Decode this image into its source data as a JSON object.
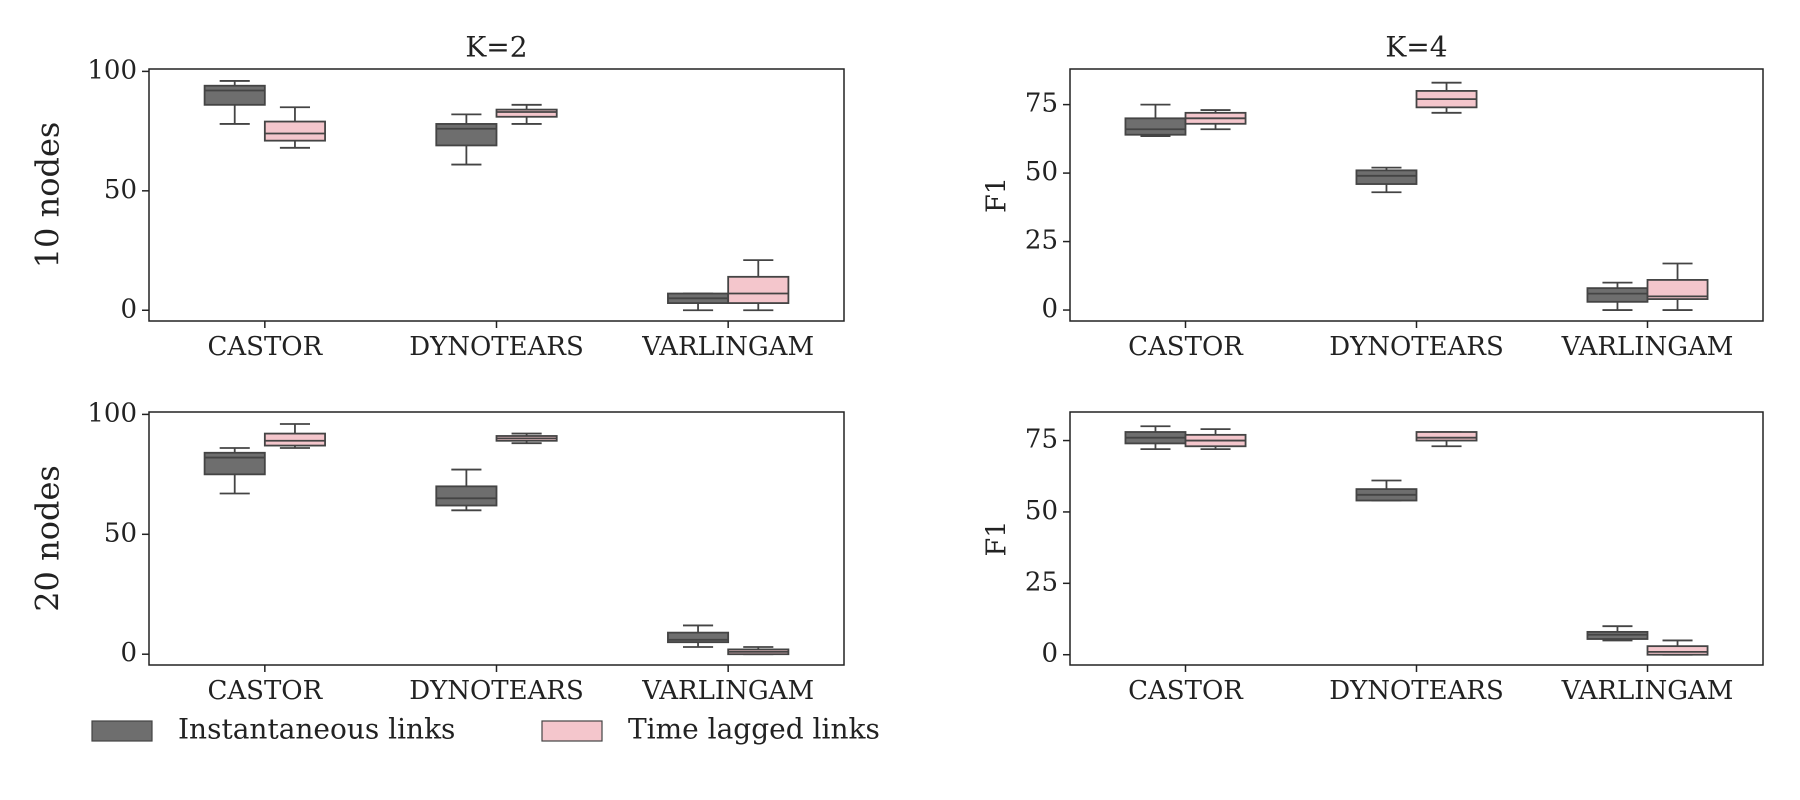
{
  "chart_data": [
    {
      "type": "box",
      "title": "K=2",
      "ylabel": "10 nodes",
      "categories": [
        "CASTOR",
        "DYNOTEARS",
        "VARLINGAM"
      ],
      "ylim": [
        -4.5,
        101
      ],
      "yticks": [
        0,
        50,
        100
      ],
      "series": [
        {
          "name": "Instantaneous links",
          "color": "#6e6e6e",
          "values": [
            [
              78,
              86,
              92,
              94,
              96
            ],
            [
              61,
              69,
              76,
              78,
              82
            ],
            [
              0,
              3,
              5,
              7,
              7
            ]
          ]
        },
        {
          "name": "Time lagged links",
          "color": "#f4c6cc",
          "values": [
            [
              68,
              71,
              74,
              79,
              85
            ],
            [
              78,
              81,
              83,
              84,
              86
            ],
            [
              0,
              3,
              7,
              14,
              21
            ]
          ]
        }
      ]
    },
    {
      "type": "box",
      "title": "K=4",
      "ylabel": "F1",
      "categories": [
        "CASTOR",
        "DYNOTEARS",
        "VARLINGAM"
      ],
      "ylim": [
        -4,
        88
      ],
      "yticks": [
        0,
        25,
        50,
        75
      ],
      "series": [
        {
          "color": "#6e6e6e",
          "values": [
            [
              63.5,
              64,
              66,
              70,
              75
            ],
            [
              43,
              46,
              49,
              51,
              52
            ],
            [
              0,
              3,
              6,
              8,
              10
            ]
          ]
        },
        {
          "color": "#f4c6cc",
          "values": [
            [
              66,
              68,
              70,
              72,
              73
            ],
            [
              72,
              74,
              77,
              80,
              83
            ],
            [
              0,
              4,
              5,
              11,
              17
            ]
          ]
        }
      ]
    },
    {
      "type": "box",
      "ylabel": "20 nodes",
      "categories": [
        "CASTOR",
        "DYNOTEARS",
        "VARLINGAM"
      ],
      "ylim": [
        -4.5,
        101
      ],
      "yticks": [
        0,
        50,
        100
      ],
      "series": [
        {
          "color": "#6e6e6e",
          "values": [
            [
              67,
              75,
              82,
              84,
              86
            ],
            [
              60,
              62,
              65,
              70,
              77
            ],
            [
              3,
              5,
              6,
              9,
              12
            ]
          ]
        },
        {
          "color": "#f4c6cc",
          "values": [
            [
              86,
              87,
              89,
              92,
              96
            ],
            [
              88,
              89,
              90,
              91,
              92
            ],
            [
              0,
              0,
              1,
              2,
              3
            ]
          ]
        }
      ]
    },
    {
      "type": "box",
      "ylabel": "F1",
      "categories": [
        "CASTOR",
        "DYNOTEARS",
        "VARLINGAM"
      ],
      "ylim": [
        -3.6,
        85
      ],
      "yticks": [
        0,
        25,
        50,
        75
      ],
      "series": [
        {
          "color": "#6e6e6e",
          "values": [
            [
              72,
              74,
              76,
              78,
              80
            ],
            [
              54,
              54,
              56,
              58,
              61
            ],
            [
              5,
              5.5,
              7,
              8,
              10
            ]
          ]
        },
        {
          "color": "#f4c6cc",
          "values": [
            [
              72,
              73,
              75,
              77,
              79
            ],
            [
              73,
              75,
              76,
              78,
              78
            ],
            [
              0,
              0,
              1,
              3,
              5
            ]
          ]
        }
      ]
    }
  ]
}
